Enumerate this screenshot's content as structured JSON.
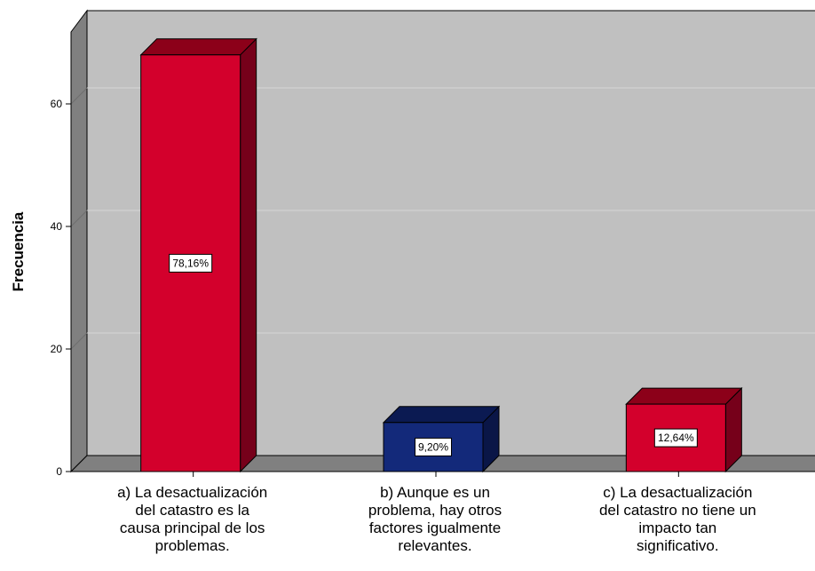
{
  "chart_data": {
    "type": "bar",
    "style": "3d",
    "ylabel": "Frecuencia",
    "xlabel": "",
    "ylim": [
      0,
      80
    ],
    "yticks": [
      0,
      20,
      40,
      60
    ],
    "grid": true,
    "categories": [
      [
        "a) La desactualización",
        "del catastro es la",
        "causa principal de los",
        "problemas."
      ],
      [
        "b) Aunque es un",
        "problema, hay otros",
        "factores igualmente",
        "relevantes."
      ],
      [
        "c) La desactualización",
        "del catastro no tiene un",
        "impacto tan",
        "significativo."
      ]
    ],
    "values": [
      68,
      8,
      11
    ],
    "data_labels": [
      "78,16%",
      "9,20%",
      "12,64%"
    ],
    "colors": {
      "bars": [
        "#d3002c",
        "#13297a",
        "#d3002c"
      ],
      "bars_top": [
        "#8c0019",
        "#0b1a52",
        "#8c0019"
      ],
      "bars_side": [
        "#76001a",
        "#0a1647",
        "#76001a"
      ],
      "back_wall": "#c0c0c0",
      "side_wall": "#808080",
      "floor": "#808080",
      "gridline": "#d6d6d6"
    }
  }
}
